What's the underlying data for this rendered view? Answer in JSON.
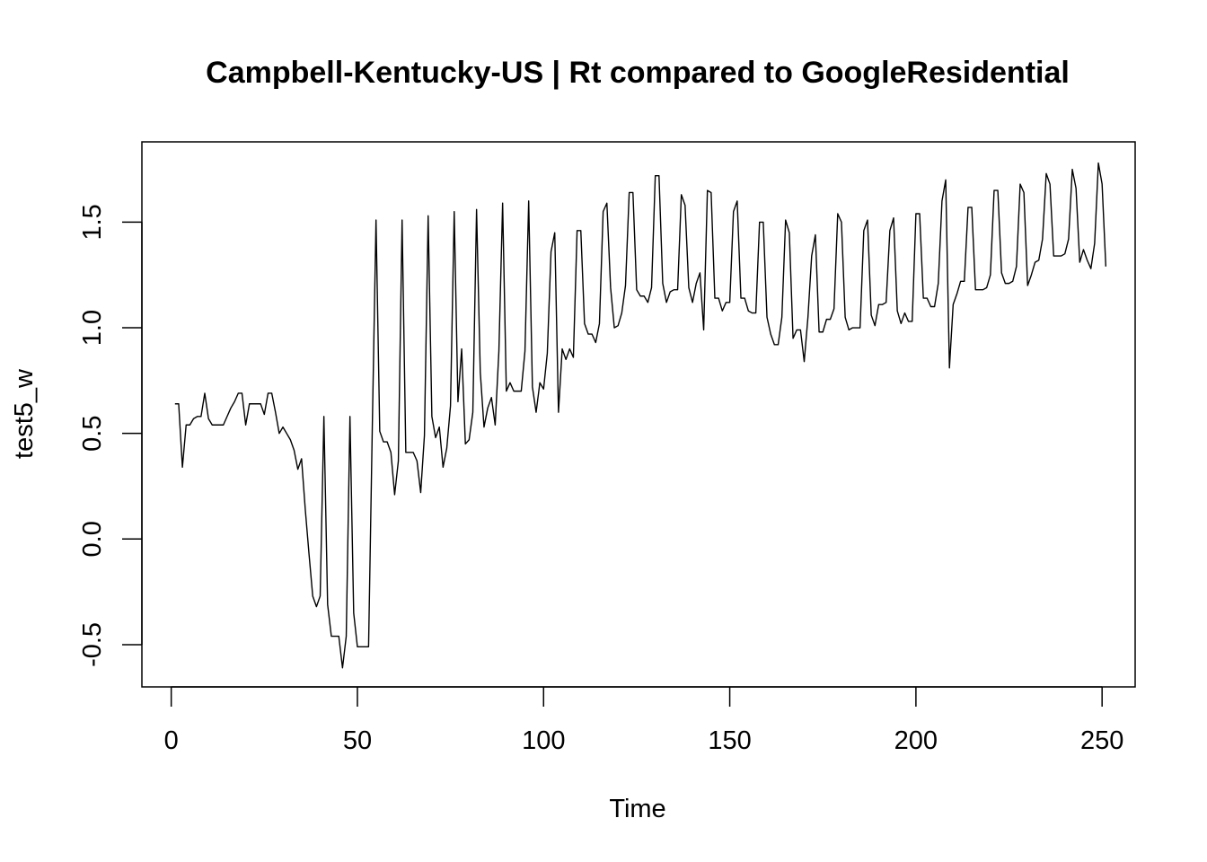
{
  "chart_data": {
    "type": "line",
    "title": "Campbell-Kentucky-US | Rt compared to GoogleResidential",
    "xlabel": "Time",
    "ylabel": "test5_w",
    "xlim": [
      -7.88,
      258.88
    ],
    "ylim": [
      -0.7,
      1.88
    ],
    "x_ticks": [
      0,
      50,
      100,
      150,
      200,
      250
    ],
    "y_ticks": [
      -0.5,
      0.0,
      0.5,
      1.0,
      1.5
    ],
    "x_tick_labels": [
      "0",
      "50",
      "100",
      "150",
      "200",
      "250"
    ],
    "y_tick_labels": [
      "-0.5",
      "0.0",
      "0.5",
      "1.0",
      "1.5"
    ],
    "grid": false,
    "legend": "none",
    "line_color": "#000000",
    "x_start": 1,
    "values": [
      0.64,
      0.64,
      0.34,
      0.54,
      0.54,
      0.57,
      0.58,
      0.58,
      0.69,
      0.57,
      0.54,
      0.54,
      0.54,
      0.54,
      0.58,
      0.62,
      0.65,
      0.69,
      0.69,
      0.54,
      0.64,
      0.64,
      0.64,
      0.64,
      0.59,
      0.69,
      0.69,
      0.6,
      0.5,
      0.53,
      0.5,
      0.47,
      0.42,
      0.33,
      0.38,
      0.14,
      -0.07,
      -0.27,
      -0.32,
      -0.27,
      0.58,
      -0.31,
      -0.46,
      -0.46,
      -0.46,
      -0.61,
      -0.46,
      0.58,
      -0.35,
      -0.51,
      -0.51,
      -0.51,
      -0.51,
      0.53,
      1.51,
      0.51,
      0.46,
      0.46,
      0.41,
      0.21,
      0.37,
      1.51,
      0.41,
      0.41,
      0.41,
      0.37,
      0.22,
      0.49,
      1.53,
      0.58,
      0.48,
      0.53,
      0.34,
      0.43,
      0.63,
      1.55,
      0.65,
      0.9,
      0.45,
      0.47,
      0.6,
      1.56,
      0.79,
      0.53,
      0.62,
      0.67,
      0.54,
      0.89,
      1.59,
      0.7,
      0.74,
      0.7,
      0.7,
      0.7,
      0.89,
      1.6,
      0.72,
      0.6,
      0.74,
      0.71,
      0.88,
      1.36,
      1.45,
      0.6,
      0.9,
      0.85,
      0.9,
      0.86,
      1.46,
      1.46,
      1.02,
      0.97,
      0.97,
      0.93,
      1.02,
      1.55,
      1.59,
      1.19,
      1.0,
      1.01,
      1.07,
      1.2,
      1.64,
      1.64,
      1.18,
      1.15,
      1.15,
      1.12,
      1.19,
      1.72,
      1.72,
      1.21,
      1.12,
      1.17,
      1.18,
      1.18,
      1.63,
      1.58,
      1.19,
      1.12,
      1.21,
      1.26,
      0.99,
      1.65,
      1.64,
      1.14,
      1.14,
      1.08,
      1.12,
      1.12,
      1.55,
      1.6,
      1.14,
      1.14,
      1.08,
      1.07,
      1.07,
      1.5,
      1.5,
      1.05,
      0.97,
      0.92,
      0.92,
      1.05,
      1.51,
      1.45,
      0.95,
      0.99,
      0.99,
      0.84,
      1.05,
      1.34,
      1.44,
      0.98,
      0.98,
      1.04,
      1.04,
      1.09,
      1.54,
      1.5,
      1.05,
      0.99,
      1.0,
      1.0,
      1.0,
      1.46,
      1.51,
      1.06,
      1.01,
      1.11,
      1.11,
      1.12,
      1.46,
      1.52,
      1.08,
      1.02,
      1.07,
      1.03,
      1.03,
      1.54,
      1.54,
      1.14,
      1.14,
      1.1,
      1.1,
      1.21,
      1.6,
      1.7,
      0.81,
      1.11,
      1.16,
      1.22,
      1.22,
      1.57,
      1.57,
      1.18,
      1.18,
      1.18,
      1.19,
      1.25,
      1.65,
      1.65,
      1.26,
      1.21,
      1.21,
      1.22,
      1.29,
      1.68,
      1.64,
      1.2,
      1.25,
      1.31,
      1.32,
      1.42,
      1.73,
      1.68,
      1.34,
      1.34,
      1.34,
      1.35,
      1.42,
      1.75,
      1.66,
      1.31,
      1.37,
      1.32,
      1.28,
      1.4,
      1.78,
      1.68,
      1.29
    ]
  }
}
